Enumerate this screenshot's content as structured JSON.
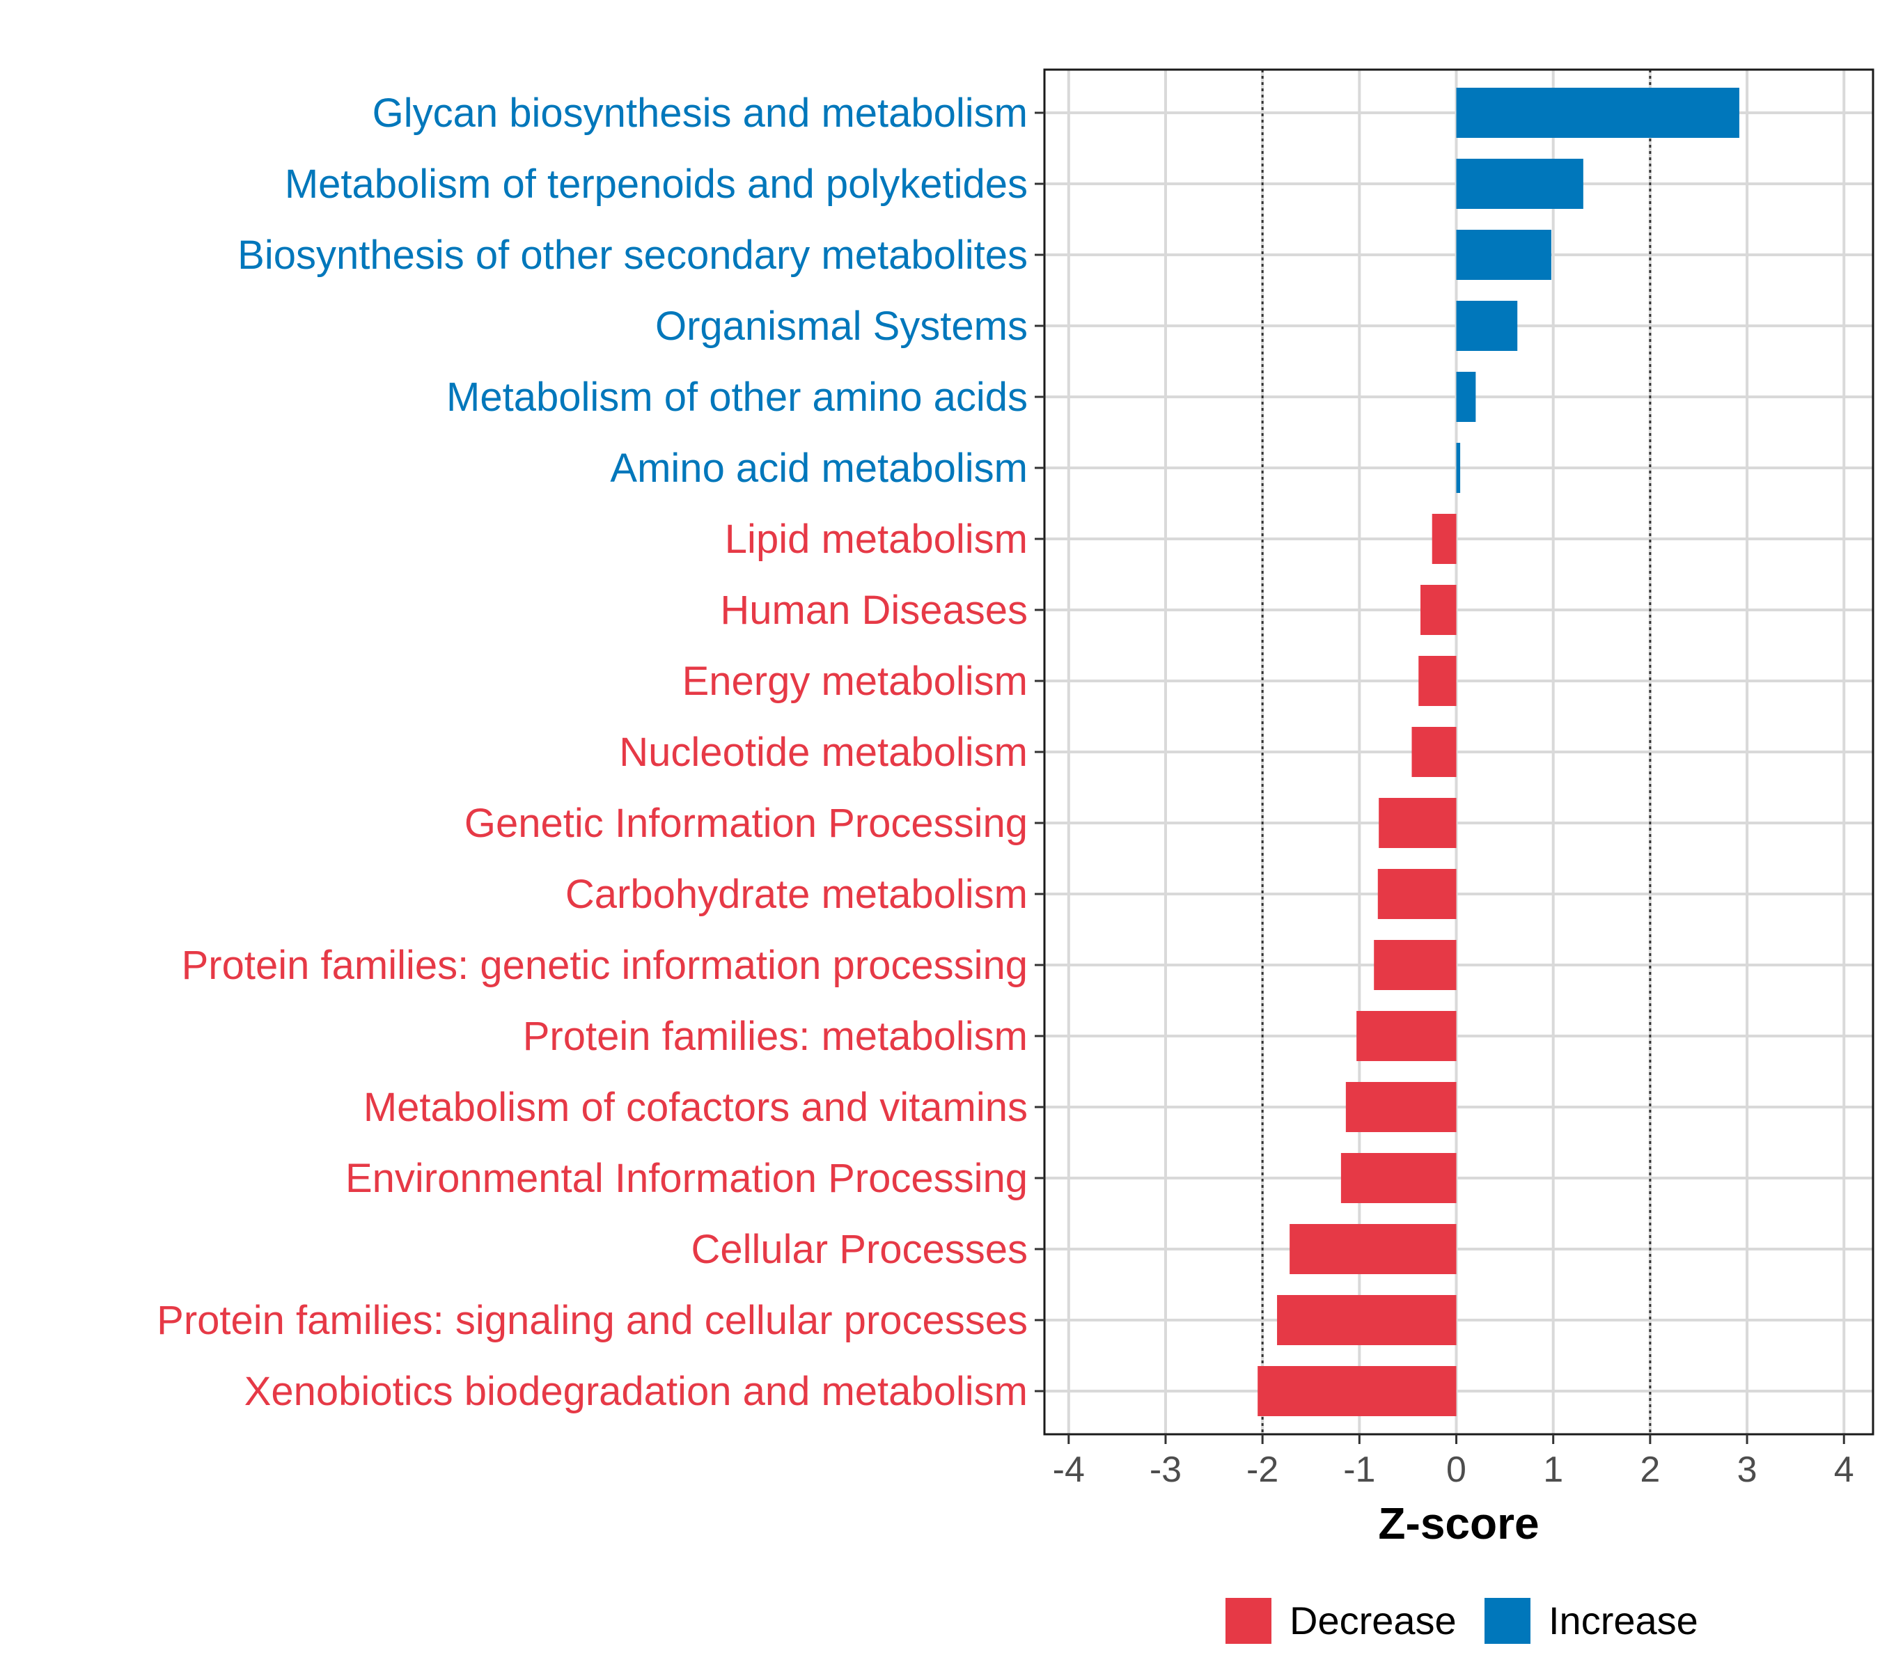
{
  "chart_data": {
    "type": "bar",
    "orientation": "horizontal",
    "xlabel": "Z-score",
    "xlim": [
      -4.25,
      4.3
    ],
    "xticks": [
      -4,
      -3,
      -2,
      -1,
      0,
      1,
      2,
      3,
      4
    ],
    "xtick_labels": [
      "-4",
      "-3",
      "-2",
      "-1",
      "0",
      "1",
      "2",
      "3",
      "4"
    ],
    "reference_lines": [
      -2,
      2
    ],
    "grid": true,
    "colors": {
      "Decrease": "#e63946",
      "Increase": "#0077bb"
    },
    "categories": [
      "Glycan biosynthesis and metabolism",
      "Metabolism of terpenoids and polyketides",
      "Biosynthesis of other secondary metabolites",
      "Organismal Systems",
      "Metabolism of other amino acids",
      "Amino acid metabolism",
      "Lipid metabolism",
      "Human Diseases",
      "Energy metabolism",
      "Nucleotide metabolism",
      "Genetic Information Processing",
      "Carbohydrate metabolism",
      "Protein families: genetic information processing",
      "Protein families: metabolism",
      "Metabolism of cofactors and vitamins",
      "Environmental Information Processing",
      "Cellular Processes",
      "Protein families: signaling and cellular processes",
      "Xenobiotics biodegradation and metabolism"
    ],
    "values": [
      2.92,
      1.31,
      0.98,
      0.63,
      0.2,
      0.04,
      -0.25,
      -0.37,
      -0.39,
      -0.46,
      -0.8,
      -0.81,
      -0.85,
      -1.03,
      -1.14,
      -1.19,
      -1.72,
      -1.85,
      -2.05
    ],
    "groups": [
      "Increase",
      "Increase",
      "Increase",
      "Increase",
      "Increase",
      "Increase",
      "Decrease",
      "Decrease",
      "Decrease",
      "Decrease",
      "Decrease",
      "Decrease",
      "Decrease",
      "Decrease",
      "Decrease",
      "Decrease",
      "Decrease",
      "Decrease",
      "Decrease"
    ],
    "legend": {
      "position": "bottom",
      "items": [
        {
          "label": "Decrease",
          "color": "#e63946"
        },
        {
          "label": "Increase",
          "color": "#0077bb"
        }
      ]
    }
  }
}
